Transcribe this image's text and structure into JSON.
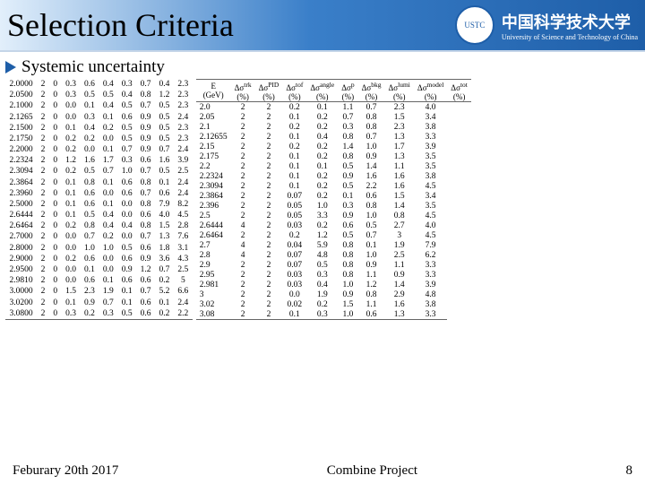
{
  "header": {
    "title": "Selection Criteria",
    "uni_cn": "中国科学技术大学",
    "uni_en": "University of Science and Technology of China"
  },
  "bullet": "Systemic uncertainty",
  "left_table": {
    "rows": [
      [
        "2.0000",
        "2",
        "0",
        "0.3",
        "0.6",
        "0.4",
        "0.3",
        "0.7",
        "0.4",
        "2.3"
      ],
      [
        "2.0500",
        "2",
        "0",
        "0.3",
        "0.5",
        "0.5",
        "0.4",
        "0.8",
        "1.2",
        "2.3"
      ],
      [
        "2.1000",
        "2",
        "0",
        "0.0",
        "0.1",
        "0.4",
        "0.5",
        "0.7",
        "0.5",
        "2.3"
      ],
      [
        "2.1265",
        "2",
        "0",
        "0.0",
        "0.3",
        "0.1",
        "0.6",
        "0.9",
        "0.5",
        "2.4"
      ],
      [
        "2.1500",
        "2",
        "0",
        "0.1",
        "0.4",
        "0.2",
        "0.5",
        "0.9",
        "0.5",
        "2.3"
      ],
      [
        "2.1750",
        "2",
        "0",
        "0.2",
        "0.2",
        "0.0",
        "0.5",
        "0.9",
        "0.5",
        "2.3"
      ],
      [
        "2.2000",
        "2",
        "0",
        "0.2",
        "0.0",
        "0.1",
        "0.7",
        "0.9",
        "0.7",
        "2.4"
      ],
      [
        "2.2324",
        "2",
        "0",
        "1.2",
        "1.6",
        "1.7",
        "0.3",
        "0.6",
        "1.6",
        "3.9"
      ],
      [
        "2.3094",
        "2",
        "0",
        "0.2",
        "0.5",
        "0.7",
        "1.0",
        "0.7",
        "0.5",
        "2.5"
      ],
      [
        "2.3864",
        "2",
        "0",
        "0.1",
        "0.8",
        "0.1",
        "0.6",
        "0.8",
        "0.1",
        "2.4"
      ],
      [
        "2.3960",
        "2",
        "0",
        "0.1",
        "0.6",
        "0.0",
        "0.6",
        "0.7",
        "0.6",
        "2.4"
      ],
      [
        "2.5000",
        "2",
        "0",
        "0.1",
        "0.6",
        "0.1",
        "0.0",
        "0.8",
        "7.9",
        "8.2"
      ],
      [
        "2.6444",
        "2",
        "0",
        "0.1",
        "0.5",
        "0.4",
        "0.0",
        "0.6",
        "4.0",
        "4.5"
      ],
      [
        "2.6464",
        "2",
        "0",
        "0.2",
        "0.8",
        "0.4",
        "0.4",
        "0.8",
        "1.5",
        "2.8"
      ],
      [
        "2.7000",
        "2",
        "0",
        "0.0",
        "0.7",
        "0.2",
        "0.0",
        "0.7",
        "1.3",
        "7.6"
      ],
      [
        "2.8000",
        "2",
        "0",
        "0.0",
        "1.0",
        "1.0",
        "0.5",
        "0.6",
        "1.8",
        "3.1"
      ],
      [
        "2.9000",
        "2",
        "0",
        "0.2",
        "0.6",
        "0.0",
        "0.6",
        "0.9",
        "3.6",
        "4.3"
      ],
      [
        "2.9500",
        "2",
        "0",
        "0.0",
        "0.1",
        "0.0",
        "0.9",
        "1.2",
        "0.7",
        "2.5"
      ],
      [
        "2.9810",
        "2",
        "0",
        "0.0",
        "0.6",
        "0.1",
        "0.6",
        "0.6",
        "0.2",
        "5"
      ],
      [
        "3.0000",
        "2",
        "0",
        "1.5",
        "2.3",
        "1.9",
        "0.1",
        "0.7",
        "5.2",
        "6.6"
      ],
      [
        "3.0200",
        "2",
        "0",
        "0.1",
        "0.9",
        "0.7",
        "0.1",
        "0.6",
        "0.1",
        "2.4"
      ],
      [
        "3.0800",
        "2",
        "0",
        "0.3",
        "0.2",
        "0.3",
        "0.5",
        "0.6",
        "0.2",
        "2.2"
      ]
    ]
  },
  "right_table": {
    "headers": [
      "E (GeV)",
      "Δσ<sup>trk</sup> (%)",
      "Δσ<sup>PID</sup> (%)",
      "Δσ<sup>tof</sup> (%)",
      "Δσ<sup>angle</sup> (%)",
      "Δσ<sup>p</sup> (%)",
      "Δσ<sup>bkg</sup> (%)",
      "Δσ<sup>lumi</sup> (%)",
      "Δσ<sup>model</sup> (%)",
      "Δσ<sup>tot</sup> (%)"
    ],
    "rows": [
      [
        "2.0",
        "2",
        "2",
        "0.2",
        "0.1",
        "1.1",
        "0.7",
        "2.3",
        "4.0"
      ],
      [
        "2.05",
        "2",
        "2",
        "0.1",
        "0.2",
        "0.7",
        "0.8",
        "1.5",
        "3.4"
      ],
      [
        "2.1",
        "2",
        "2",
        "0.2",
        "0.2",
        "0.3",
        "0.8",
        "2.3",
        "3.8"
      ],
      [
        "2.12655",
        "2",
        "2",
        "0.1",
        "0.4",
        "0.8",
        "0.7",
        "1.3",
        "3.3"
      ],
      [
        "2.15",
        "2",
        "2",
        "0.2",
        "0.2",
        "1.4",
        "1.0",
        "1.7",
        "3.9"
      ],
      [
        "2.175",
        "2",
        "2",
        "0.1",
        "0.2",
        "0.8",
        "0.9",
        "1.3",
        "3.5"
      ],
      [
        "2.2",
        "2",
        "2",
        "0.1",
        "0.1",
        "0.5",
        "1.4",
        "1.1",
        "3.5"
      ],
      [
        "2.2324",
        "2",
        "2",
        "0.1",
        "0.2",
        "0.9",
        "1.6",
        "1.6",
        "3.8"
      ],
      [
        "2.3094",
        "2",
        "2",
        "0.1",
        "0.2",
        "0.5",
        "2.2",
        "1.6",
        "4.5"
      ],
      [
        "2.3864",
        "2",
        "2",
        "0.07",
        "0.2",
        "0.1",
        "0.6",
        "1.5",
        "3.4"
      ],
      [
        "2.396",
        "2",
        "2",
        "0.05",
        "1.0",
        "0.3",
        "0.8",
        "1.4",
        "3.5"
      ],
      [
        "2.5",
        "2",
        "2",
        "0.05",
        "3.3",
        "0.9",
        "1.0",
        "0.8",
        "4.5"
      ],
      [
        "2.6444",
        "4",
        "2",
        "0.03",
        "0.2",
        "0.6",
        "0.5",
        "2.7",
        "4.0"
      ],
      [
        "2.6464",
        "2",
        "2",
        "0.2",
        "1.2",
        "0.5",
        "0.7",
        "3",
        "4.5"
      ],
      [
        "2.7",
        "4",
        "2",
        "0.04",
        "5.9",
        "0.8",
        "0.1",
        "1.9",
        "7.9"
      ],
      [
        "2.8",
        "4",
        "2",
        "0.07",
        "4.8",
        "0.8",
        "1.0",
        "2.5",
        "6.2"
      ],
      [
        "2.9",
        "2",
        "2",
        "0.07",
        "0.5",
        "0.8",
        "0.9",
        "1.1",
        "3.3"
      ],
      [
        "2.95",
        "2",
        "2",
        "0.03",
        "0.3",
        "0.8",
        "1.1",
        "0.9",
        "3.3"
      ],
      [
        "2.981",
        "2",
        "2",
        "0.03",
        "0.4",
        "1.0",
        "1.2",
        "1.4",
        "3.9"
      ],
      [
        "3",
        "2",
        "2",
        "0.0",
        "1.9",
        "0.9",
        "0.8",
        "2.9",
        "4.8"
      ],
      [
        "3.02",
        "2",
        "2",
        "0.02",
        "0.2",
        "1.5",
        "1.1",
        "1.6",
        "3.8"
      ],
      [
        "3.08",
        "2",
        "2",
        "0.1",
        "0.3",
        "1.0",
        "0.6",
        "1.3",
        "3.3"
      ]
    ]
  },
  "footer": {
    "date": "Feburary 20th 2017",
    "center": "Combine Project",
    "page": "8"
  }
}
